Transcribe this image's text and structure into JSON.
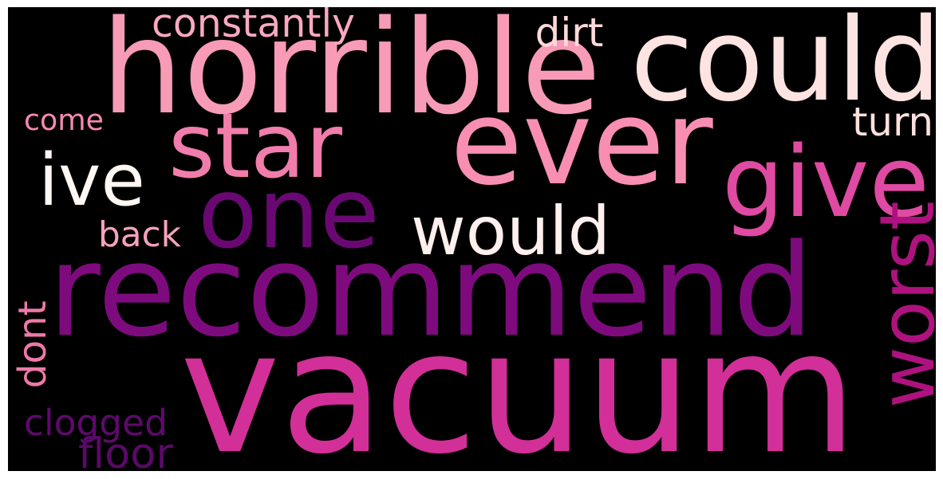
{
  "background_color": "#000000",
  "words": [
    {
      "id": "vacuum",
      "text": "vacuum",
      "color": "#d22f98",
      "orientation": "horizontal"
    },
    {
      "id": "recommend",
      "text": "recommend",
      "color": "#7e0b7d",
      "orientation": "horizontal"
    },
    {
      "id": "ever",
      "text": "ever",
      "color": "#f98eb3",
      "orientation": "horizontal"
    },
    {
      "id": "horrible",
      "text": "horrible",
      "color": "#f79bb6",
      "orientation": "horizontal"
    },
    {
      "id": "could",
      "text": "could",
      "color": "#fde3e1",
      "orientation": "horizontal"
    },
    {
      "id": "one",
      "text": "one",
      "color": "#6a0873",
      "orientation": "horizontal"
    },
    {
      "id": "star",
      "text": "star",
      "color": "#f07dab",
      "orientation": "horizontal"
    },
    {
      "id": "give",
      "text": "give",
      "color": "#df4aa2",
      "orientation": "horizontal"
    },
    {
      "id": "would",
      "text": "would",
      "color": "#fff0ee",
      "orientation": "horizontal"
    },
    {
      "id": "ive",
      "text": "ive",
      "color": "#fff7f3",
      "orientation": "horizontal"
    },
    {
      "id": "worst",
      "text": "worst",
      "color": "#ae127f",
      "orientation": "vertical"
    },
    {
      "id": "constantly",
      "text": "constantly",
      "color": "#f8a9c0",
      "orientation": "horizontal"
    },
    {
      "id": "dirt",
      "text": "dirt",
      "color": "#fdd9d8",
      "orientation": "horizontal"
    },
    {
      "id": "come",
      "text": "come",
      "color": "#f48ab3",
      "orientation": "horizontal"
    },
    {
      "id": "turn",
      "text": "turn",
      "color": "#fde0dd",
      "orientation": "horizontal"
    },
    {
      "id": "back",
      "text": "back",
      "color": "#f7a1bc",
      "orientation": "horizontal"
    },
    {
      "id": "dont",
      "text": "dont",
      "color": "#ee79a9",
      "orientation": "vertical"
    },
    {
      "id": "clogged",
      "text": "clogged",
      "color": "#5f096d",
      "orientation": "horizontal"
    },
    {
      "id": "floor",
      "text": "floor",
      "color": "#5a0968",
      "orientation": "horizontal"
    }
  ]
}
